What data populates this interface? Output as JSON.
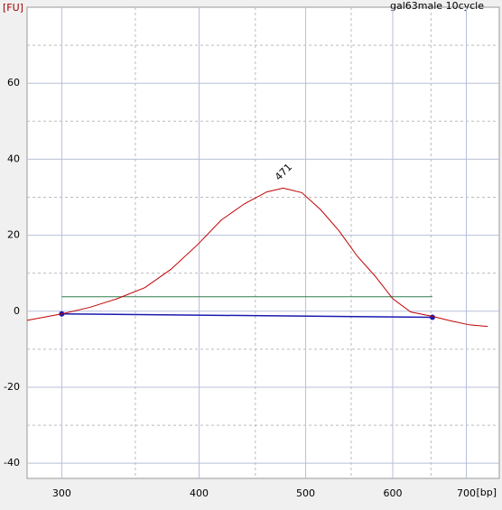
{
  "chart_data": {
    "type": "line",
    "title": "gal63male 10cycle",
    "y_label": "[FU]",
    "x_label": "[bp]",
    "xscale": "log",
    "xlim": [
      279,
      750
    ],
    "ylim": [
      -44,
      80
    ],
    "xticks": [
      300,
      400,
      500,
      600,
      700
    ],
    "yticks": [
      -40,
      -20,
      0,
      20,
      40,
      60
    ],
    "x_minor_ticks": [
      350,
      450,
      550,
      650
    ],
    "y_minor_ticks": [
      -30,
      -10,
      10,
      30,
      50,
      70
    ],
    "grid": true,
    "color": "#c00000",
    "x": [
      279,
      300,
      318,
      337,
      357,
      377,
      399,
      419,
      440,
      461,
      477,
      496,
      516,
      536,
      557,
      578,
      600,
      623,
      653,
      679,
      705,
      732
    ],
    "values": [
      -2.4,
      -0.7,
      1,
      3.3,
      6.2,
      11,
      17.6,
      24,
      28.3,
      31.4,
      32.4,
      31.2,
      26.7,
      21.2,
      14.5,
      9.3,
      3.3,
      -0.2,
      -1.4,
      -2.6,
      -3.6,
      -4
    ],
    "region_line": {
      "x": [
        300,
        652
      ],
      "values": [
        3.8,
        3.8
      ],
      "color": "#2e7d4f"
    },
    "baseline": {
      "x": [
        300,
        652
      ],
      "values": [
        -0.7,
        -1.6
      ],
      "color": "#1a1ab0"
    },
    "peak_labels": [
      {
        "x": 471,
        "y": 32.4
      }
    ]
  }
}
